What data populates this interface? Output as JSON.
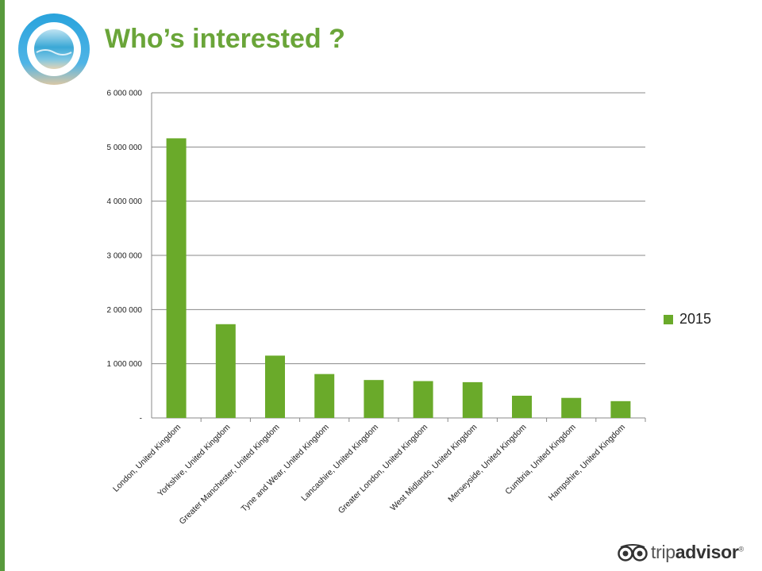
{
  "slide": {
    "title": "Who’s interested ?",
    "accent_color": "#589a3c",
    "title_color": "#6aa539"
  },
  "logos": {
    "brand": "circular-beach-icon",
    "footer_text_prefix": "trip",
    "footer_text_suffix": "advisor",
    "footer_mark": "®"
  },
  "chart_data": {
    "type": "bar",
    "categories": [
      "London, United Kingdom",
      "Yorkshire, United Kingdom",
      "Greater Manchester, United Kingdom",
      "Tyne and Wear, United Kingdom",
      "Lancashire, United Kingdom",
      "Greater London, United Kingdom",
      "West Midlands, United Kingdom",
      "Merseyside, United Kingdom",
      "Cumbria, United Kingdom",
      "Hampshire, United Kingdom"
    ],
    "series": [
      {
        "name": "2015",
        "color": "#6aaa2a",
        "values": [
          5160000,
          1730000,
          1150000,
          810000,
          700000,
          680000,
          660000,
          410000,
          370000,
          310000
        ]
      }
    ],
    "ylim": [
      0,
      6000000
    ],
    "yticks": [
      0,
      1000000,
      2000000,
      3000000,
      4000000,
      5000000,
      6000000
    ],
    "ytick_labels": [
      "-",
      "1 000 000",
      "2 000 000",
      "3 000 000",
      "4 000 000",
      "5 000 000",
      "6 000 000"
    ],
    "grid": true,
    "legend_position": "right",
    "title": "",
    "xlabel": "",
    "ylabel": ""
  }
}
